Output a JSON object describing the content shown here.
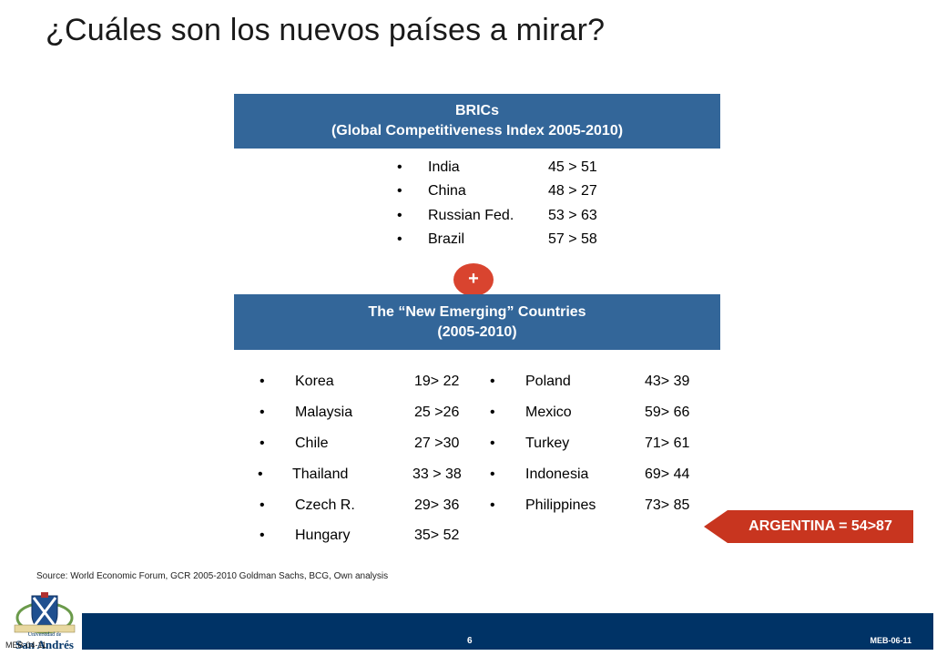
{
  "title": "¿Cuáles son los nuevos países a mirar?",
  "brics_box": {
    "line1": "BRICs",
    "line2": "(Global Competitiveness Index 2005-2010)"
  },
  "brics_items": [
    {
      "country": "India",
      "value": "45 > 51"
    },
    {
      "country": "China",
      "value": "48 > 27"
    },
    {
      "country": "Russian Fed.",
      "value": "53 > 63"
    },
    {
      "country": "Brazil",
      "value": "57 > 58"
    }
  ],
  "plus_label": "+",
  "emerging_box": {
    "line1": "The “New Emerging” Countries",
    "line2": "(2005-2010)"
  },
  "emerging_left": [
    {
      "country": "Korea",
      "value": "19> 22"
    },
    {
      "country": "Malaysia",
      "value": "25 >26"
    },
    {
      "country": "Chile",
      "value": "27 >30"
    },
    {
      "country": "Thailand",
      "value": "33 > 38"
    },
    {
      "country": "Czech R.",
      "value": "29> 36"
    },
    {
      "country": "Hungary",
      "value": "35> 52"
    }
  ],
  "emerging_right": [
    {
      "country": "Poland",
      "value": "43> 39"
    },
    {
      "country": "Mexico",
      "value": "59> 66"
    },
    {
      "country": "Turkey",
      "value": "71> 61"
    },
    {
      "country": "Indonesia",
      "value": "69> 44"
    },
    {
      "country": "Philippines",
      "value": "73> 85"
    }
  ],
  "bullet": "•",
  "argentina_tag": "ARGENTINA = 54>87",
  "source": "Source: World Economic Forum, GCR 2005-2010 Goldman Sachs, BCG, Own analysis",
  "footer": {
    "page_number": "6",
    "doc_code": "MEB-06-11",
    "left_code": "MEB-04-11",
    "logo_small": "Universidad de",
    "logo_name": "San Andrés"
  },
  "colors": {
    "box_blue": "#336699",
    "accent_red": "#d9442f",
    "argentina_red": "#c8351f",
    "footer_navy": "#003366"
  }
}
